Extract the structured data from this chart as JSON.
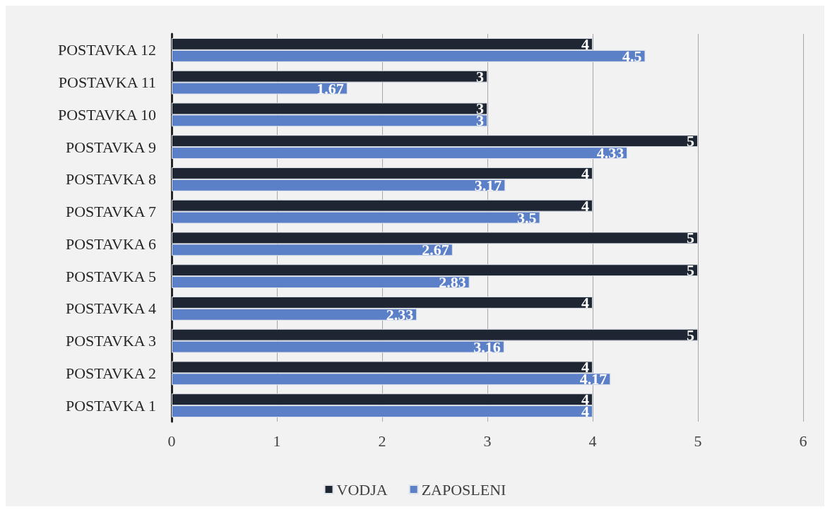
{
  "chart_data": {
    "type": "bar",
    "orientation": "horizontal",
    "categories": [
      "POSTAVKA 12",
      "POSTAVKA 11",
      "POSTAVKA 10",
      "POSTAVKA 9",
      "POSTAVKA 8",
      "POSTAVKA 7",
      "POSTAVKA 6",
      "POSTAVKA 5",
      "POSTAVKA 4",
      "POSTAVKA 3",
      "POSTAVKA 2",
      "POSTAVKA 1"
    ],
    "series": [
      {
        "name": "VODJA",
        "color": "#1f2633",
        "values": [
          4,
          3,
          3,
          5,
          4,
          4,
          5,
          5,
          4,
          5,
          4,
          4
        ]
      },
      {
        "name": "ZAPOSLENI",
        "color": "#5b80c8",
        "values": [
          4.5,
          1.67,
          3,
          4.33,
          3.17,
          3.5,
          2.67,
          2.83,
          2.33,
          3.16,
          4.17,
          4
        ]
      }
    ],
    "xlim": [
      0,
      6
    ],
    "xticks": [
      0,
      1,
      2,
      3,
      4,
      5,
      6
    ],
    "grid": "x",
    "legend": "bottom",
    "data_labels": true
  }
}
